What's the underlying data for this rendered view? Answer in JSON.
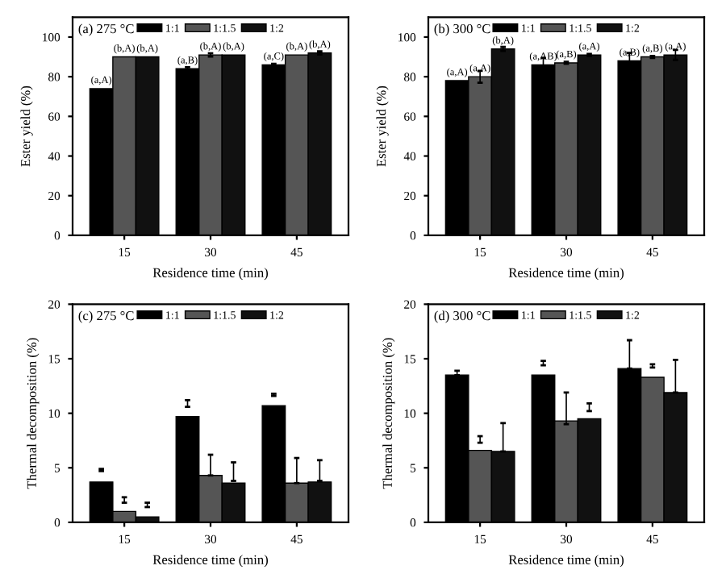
{
  "chart_data": [
    {
      "type": "bar",
      "title": "(a) 275 °C",
      "xlabel": "Residence time (min)",
      "ylabel": "Ester yield (%)",
      "categories": [
        "15",
        "30",
        "45"
      ],
      "ylim": [
        0,
        110
      ],
      "yticks": [
        0,
        20,
        40,
        60,
        80,
        100
      ],
      "legend": "top",
      "grid": false,
      "series": [
        {
          "name": "1:1",
          "color": "#000000",
          "values": [
            74,
            84,
            86
          ],
          "errors": [
            null,
            0.8,
            0.5
          ],
          "value_labels": [
            "(a,A)",
            "(a,B)",
            "(a,C)"
          ]
        },
        {
          "name": "1:1.5",
          "color": "#555555",
          "values": [
            90,
            91,
            91
          ],
          "errors": [
            null,
            0.8,
            null
          ],
          "value_labels": [
            "(b,A)",
            "(b,A)",
            "(b,A)"
          ]
        },
        {
          "name": "1:2",
          "color": "#111111",
          "values": [
            90,
            91,
            92
          ],
          "errors": [
            null,
            null,
            0.8
          ],
          "value_labels": [
            "(b,A)",
            "(b,A)",
            "(b,A)"
          ]
        }
      ]
    },
    {
      "type": "bar",
      "title": "(b) 300 °C",
      "xlabel": "Residence time (min)",
      "ylabel": "Ester yield (%)",
      "categories": [
        "15",
        "30",
        "45"
      ],
      "ylim": [
        0,
        110
      ],
      "yticks": [
        0,
        20,
        40,
        60,
        80,
        100
      ],
      "legend": "top",
      "grid": false,
      "series": [
        {
          "name": "1:1",
          "color": "#000000",
          "values": [
            78,
            86,
            88
          ],
          "errors": [
            null,
            3.5,
            4
          ],
          "value_labels": [
            "(a,A)",
            "(a,AB)",
            "(a,B)"
          ]
        },
        {
          "name": "1:1.5",
          "color": "#555555",
          "values": [
            80,
            87,
            90
          ],
          "errors": [
            3,
            0.5,
            0.5
          ],
          "value_labels": [
            "(a,A)",
            "(a,B)",
            "(a,B)"
          ]
        },
        {
          "name": "1:2",
          "color": "#111111",
          "values": [
            94,
            91,
            91
          ],
          "errors": [
            1,
            0.5,
            2.5
          ],
          "value_labels": [
            "(b,A)",
            "(a,A)",
            "(a,A)"
          ]
        }
      ]
    },
    {
      "type": "bar",
      "title": "(c) 275 °C",
      "xlabel": "Residence time (min)",
      "ylabel": "Thermal decomposition (%)",
      "categories": [
        "15",
        "30",
        "45"
      ],
      "ylim": [
        0,
        20
      ],
      "yticks": [
        0,
        5,
        10,
        15,
        20
      ],
      "legend": "top",
      "grid": false,
      "series": [
        {
          "name": "1:1",
          "color": "#000000",
          "values": [
            3.7,
            9.7,
            10.7
          ],
          "errors": [
            [
              4.7,
              4.9
            ],
            [
              10.6,
              11.2
            ],
            [
              11.6,
              11.8
            ]
          ]
        },
        {
          "name": "1:1.5",
          "color": "#555555",
          "values": [
            1.0,
            4.3,
            3.6
          ],
          "errors": [
            [
              1.8,
              2.3
            ],
            [
              4.3,
              6.2
            ],
            [
              3.6,
              5.9
            ]
          ]
        },
        {
          "name": "1:2",
          "color": "#111111",
          "values": [
            0.5,
            3.6,
            3.7
          ],
          "errors": [
            [
              1.4,
              1.8
            ],
            [
              3.8,
              5.5
            ],
            [
              3.8,
              5.7
            ]
          ]
        }
      ]
    },
    {
      "type": "bar",
      "title": "(d) 300 °C",
      "xlabel": "Residence time (min)",
      "ylabel": "Thermal decomposition (%)",
      "categories": [
        "15",
        "30",
        "45"
      ],
      "ylim": [
        0,
        20
      ],
      "yticks": [
        0,
        5,
        10,
        15,
        20
      ],
      "legend": "top",
      "grid": false,
      "series": [
        {
          "name": "1:1",
          "color": "#000000",
          "values": [
            13.5,
            13.5,
            14.1
          ],
          "errors": [
            [
              13.5,
              13.9
            ],
            [
              14.4,
              14.8
            ],
            [
              14.1,
              16.7
            ]
          ]
        },
        {
          "name": "1:1.5",
          "color": "#555555",
          "values": [
            6.6,
            9.3,
            13.3
          ],
          "errors": [
            [
              7.3,
              7.9
            ],
            [
              9.0,
              11.9
            ],
            [
              14.2,
              14.5
            ]
          ]
        },
        {
          "name": "1:2",
          "color": "#111111",
          "values": [
            6.5,
            9.5,
            11.9
          ],
          "errors": [
            [
              6.5,
              9.1
            ],
            [
              10.2,
              10.9
            ],
            [
              11.9,
              14.9
            ]
          ]
        }
      ]
    }
  ]
}
